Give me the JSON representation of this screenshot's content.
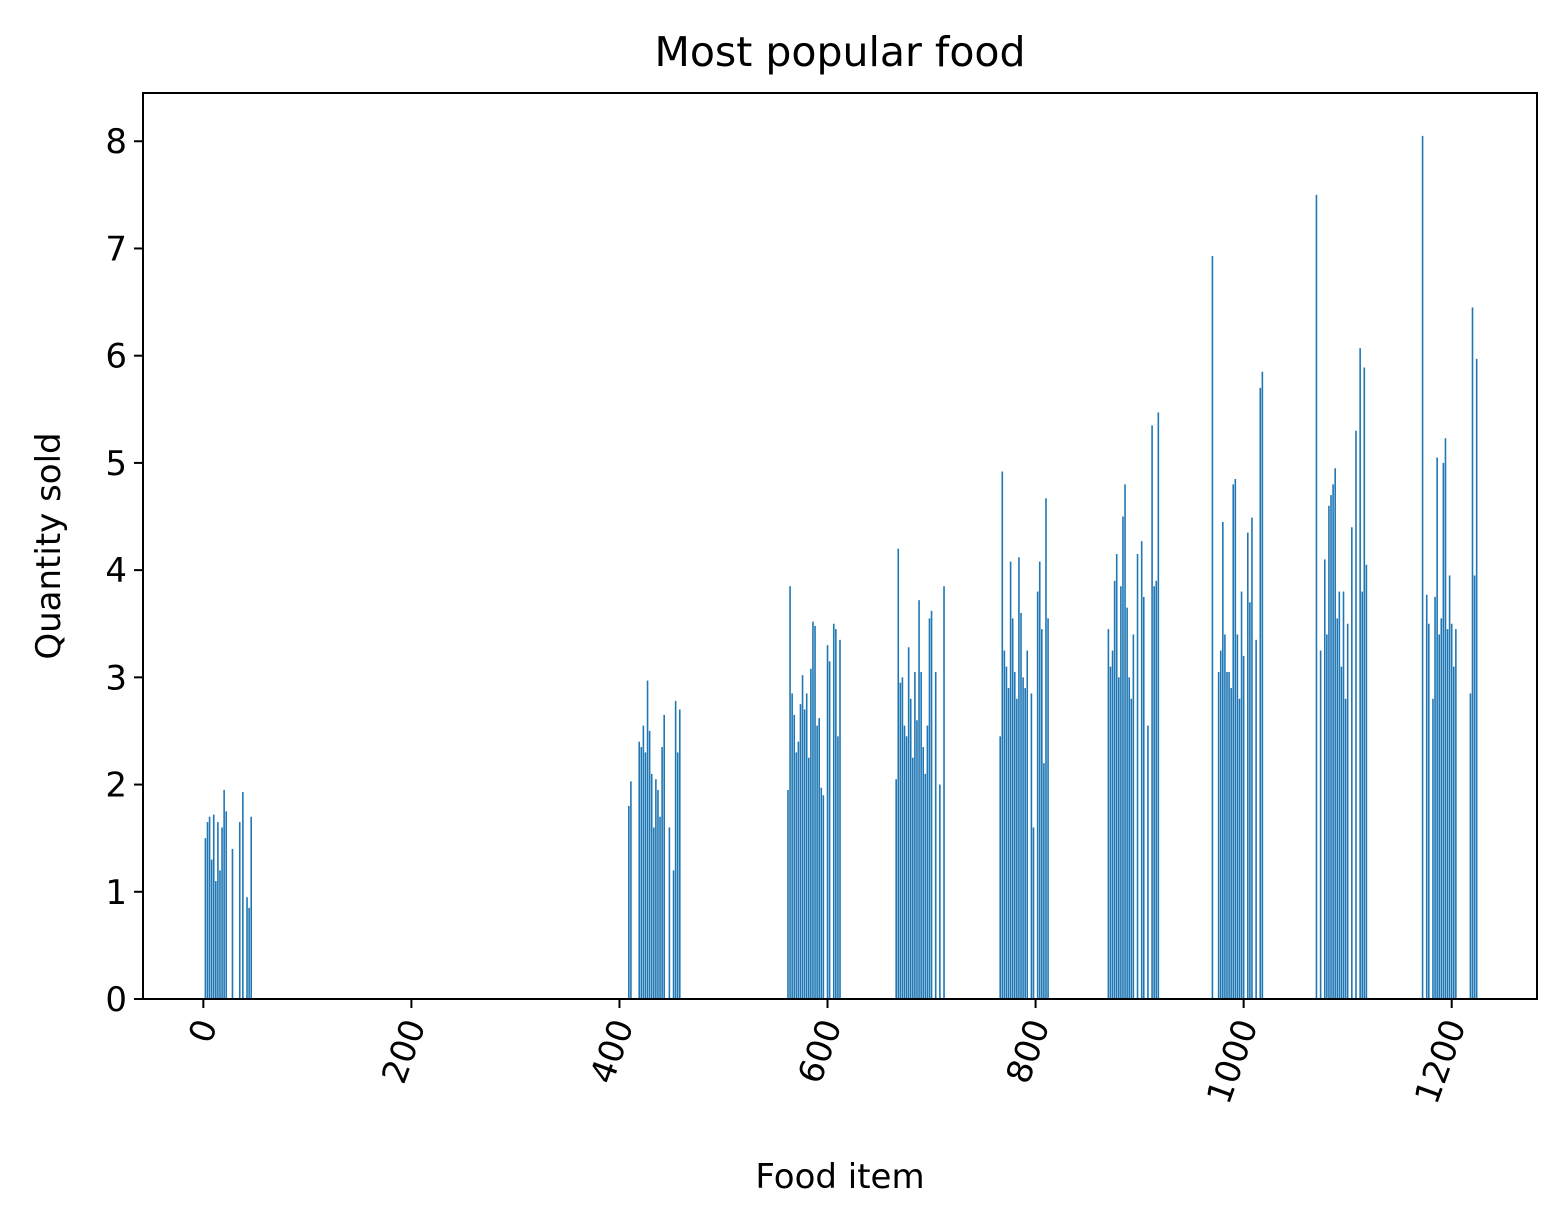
{
  "chart_data": {
    "type": "bar",
    "title": "Most popular food",
    "xlabel": "Food item",
    "ylabel": "Quantity sold",
    "xlim": [
      -58,
      1282
    ],
    "ylim": [
      0,
      8.45
    ],
    "xticks": [
      0,
      200,
      400,
      600,
      800,
      1000,
      1200
    ],
    "yticks": [
      0,
      1,
      2,
      3,
      4,
      5,
      6,
      7,
      8
    ],
    "xtick_rotation": 70,
    "grid": false,
    "legend": "none",
    "bar_color": "#1f77b4",
    "x": [
      2,
      4,
      6,
      8,
      10,
      12,
      14,
      16,
      18,
      20,
      22,
      28,
      35,
      38,
      42,
      44,
      46,
      409,
      411,
      419,
      421,
      423,
      425,
      427,
      429,
      431,
      433,
      435,
      437,
      439,
      441,
      443,
      448,
      452,
      454,
      456,
      458,
      562,
      564,
      566,
      568,
      570,
      572,
      574,
      576,
      578,
      580,
      582,
      584,
      586,
      588,
      590,
      592,
      594,
      596,
      600,
      602,
      606,
      608,
      610,
      612,
      666,
      668,
      670,
      672,
      674,
      676,
      678,
      680,
      682,
      684,
      686,
      688,
      690,
      692,
      694,
      696,
      698,
      700,
      704,
      708,
      712,
      766,
      768,
      770,
      772,
      774,
      776,
      778,
      780,
      782,
      784,
      786,
      788,
      790,
      792,
      796,
      798,
      802,
      804,
      806,
      808,
      810,
      812,
      870,
      872,
      874,
      876,
      878,
      880,
      882,
      884,
      886,
      888,
      890,
      892,
      894,
      898,
      902,
      904,
      908,
      912,
      914,
      916,
      918,
      970,
      976,
      978,
      980,
      982,
      984,
      986,
      988,
      990,
      992,
      994,
      996,
      998,
      1000,
      1004,
      1006,
      1008,
      1012,
      1016,
      1018,
      1070,
      1074,
      1078,
      1080,
      1082,
      1084,
      1086,
      1088,
      1090,
      1092,
      1094,
      1096,
      1098,
      1100,
      1104,
      1108,
      1112,
      1114,
      1116,
      1118,
      1172,
      1176,
      1178,
      1182,
      1184,
      1186,
      1188,
      1190,
      1192,
      1194,
      1196,
      1198,
      1200,
      1202,
      1204,
      1218,
      1220,
      1222,
      1224
    ],
    "values": [
      1.5,
      1.65,
      1.7,
      1.3,
      1.72,
      1.1,
      1.65,
      1.2,
      1.6,
      1.95,
      1.75,
      1.4,
      1.65,
      1.93,
      0.95,
      0.85,
      1.7,
      1.8,
      2.03,
      2.4,
      2.35,
      2.55,
      2.3,
      2.97,
      2.5,
      2.1,
      1.6,
      2.05,
      1.95,
      1.7,
      2.35,
      2.65,
      1.6,
      1.2,
      2.78,
      2.3,
      2.7,
      1.95,
      3.85,
      2.85,
      2.65,
      2.3,
      2.4,
      2.75,
      3.02,
      2.7,
      2.85,
      2.25,
      3.08,
      3.52,
      3.48,
      2.55,
      2.62,
      1.97,
      1.9,
      3.3,
      3.15,
      3.5,
      3.45,
      2.45,
      3.35,
      2.05,
      4.2,
      2.95,
      3.0,
      2.55,
      2.45,
      3.28,
      2.8,
      2.25,
      3.05,
      2.6,
      3.72,
      3.05,
      2.35,
      2.1,
      2.55,
      3.55,
      3.62,
      3.05,
      2.0,
      3.85,
      2.45,
      4.92,
      3.25,
      3.1,
      2.9,
      4.08,
      3.55,
      3.05,
      2.8,
      4.12,
      3.6,
      3.0,
      2.9,
      3.25,
      2.85,
      1.6,
      3.8,
      4.08,
      3.45,
      2.2,
      4.67,
      3.55,
      3.45,
      3.1,
      3.25,
      3.9,
      4.15,
      3.0,
      3.85,
      4.5,
      4.8,
      3.65,
      3.0,
      2.8,
      3.4,
      4.15,
      4.27,
      3.75,
      2.55,
      5.35,
      3.85,
      3.9,
      5.47,
      6.93,
      3.05,
      3.25,
      4.45,
      3.4,
      3.05,
      3.05,
      2.9,
      4.8,
      4.85,
      3.4,
      2.8,
      3.8,
      3.2,
      4.35,
      3.7,
      4.49,
      3.35,
      5.7,
      5.85,
      7.5,
      3.25,
      4.1,
      3.4,
      4.6,
      4.7,
      4.8,
      4.95,
      3.55,
      3.8,
      3.1,
      3.8,
      2.8,
      3.5,
      4.4,
      5.3,
      6.07,
      3.8,
      5.89,
      4.05,
      8.05,
      3.77,
      3.5,
      2.8,
      3.75,
      5.05,
      3.4,
      3.55,
      5.0,
      5.23,
      3.45,
      3.95,
      3.5,
      3.1,
      3.45,
      2.85,
      6.45,
      3.95,
      5.97
    ]
  }
}
